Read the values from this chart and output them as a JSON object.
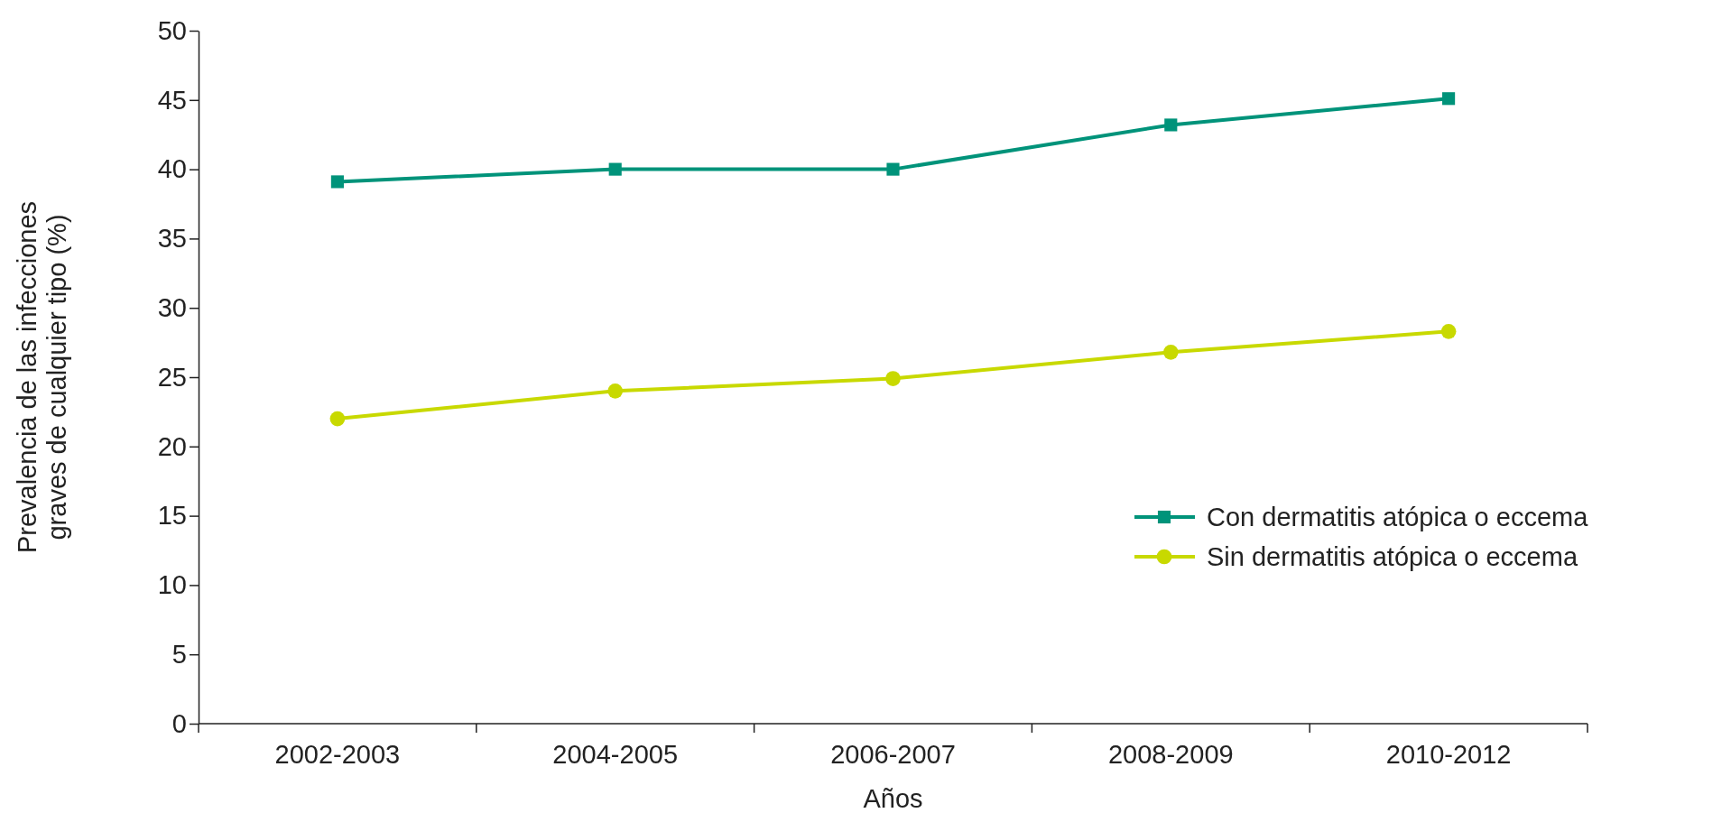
{
  "chart_data": {
    "type": "line",
    "xlabel": "Años",
    "ylabel": "Prevalencia de las infecciones graves de cualquier tipo (%)",
    "categories": [
      "2002-2003",
      "2004-2005",
      "2006-2007",
      "2008-2009",
      "2010-2012"
    ],
    "series": [
      {
        "name": "Con dermatitis atópica o eccema",
        "color": "#00937a",
        "marker": "square",
        "values": [
          39.1,
          40.0,
          40.0,
          43.2,
          45.1
        ]
      },
      {
        "name": "Sin dermatitis atópica o eccema",
        "color": "#c8d900",
        "marker": "circle",
        "values": [
          22.0,
          24.0,
          24.9,
          26.8,
          28.3
        ]
      }
    ],
    "ylim": [
      0,
      50
    ],
    "yticks": [
      0,
      5,
      10,
      15,
      20,
      25,
      30,
      35,
      40,
      45,
      50
    ],
    "grid": false,
    "legend": "right",
    "line_style": "solid"
  }
}
